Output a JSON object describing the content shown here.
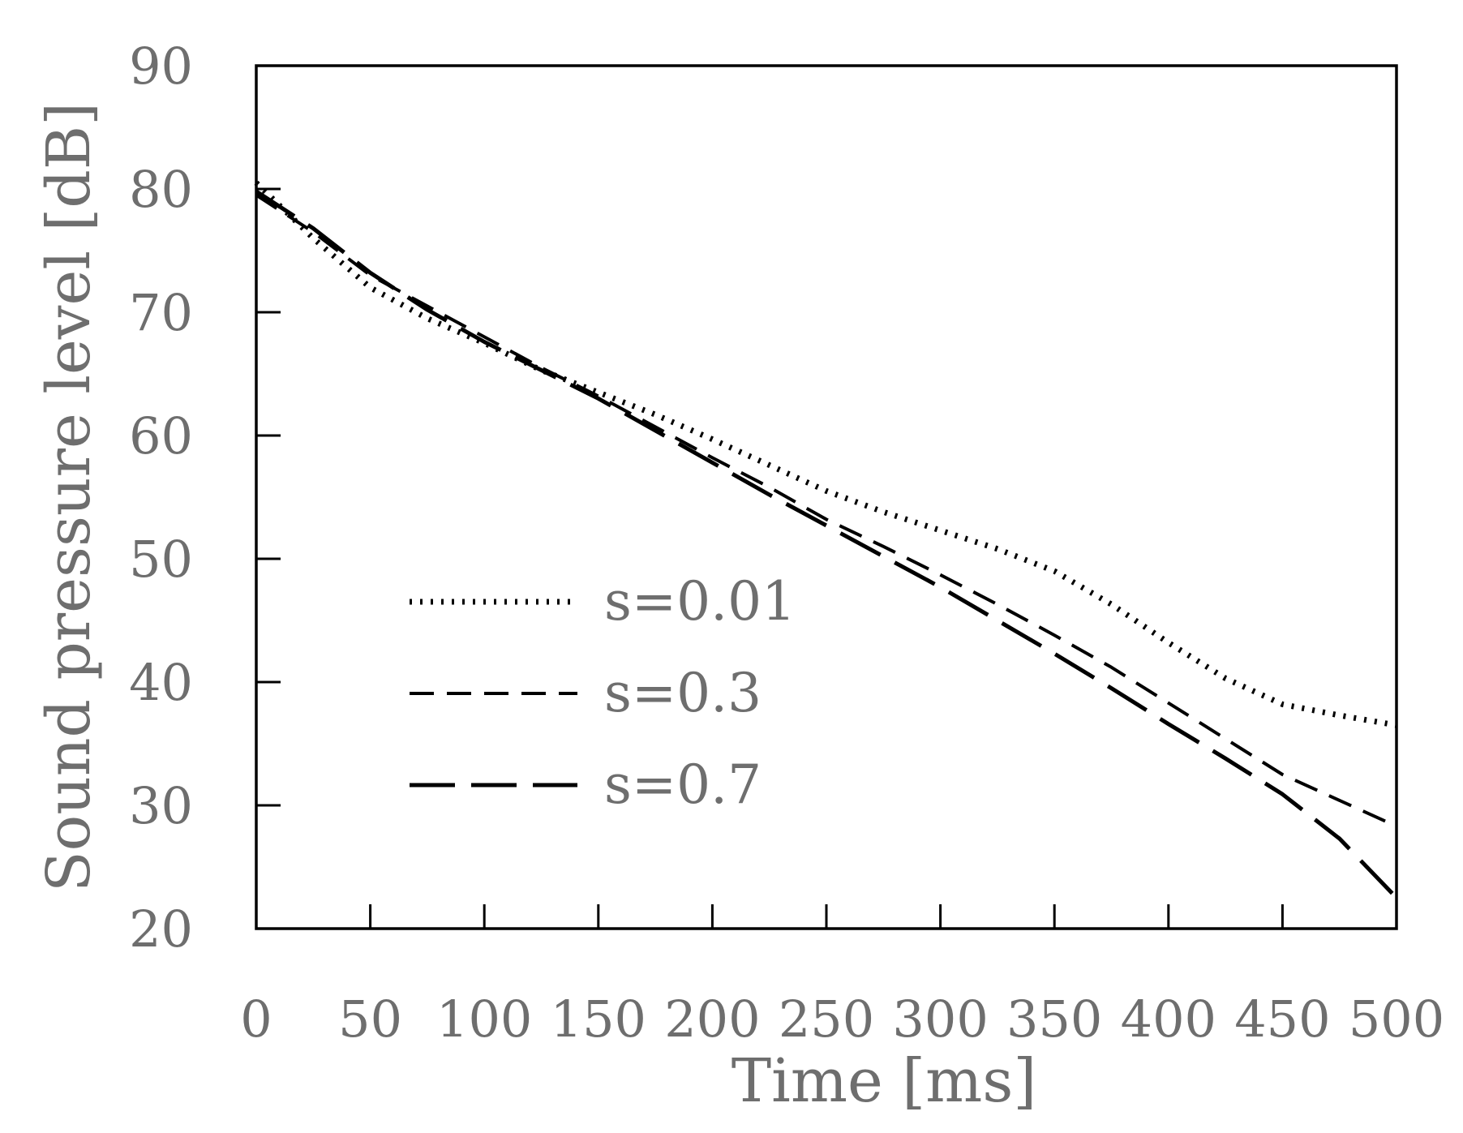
{
  "chart_data": {
    "type": "line",
    "xlabel": "Time [ms]",
    "ylabel": "Sound pressure level [dB]",
    "xlim": [
      0,
      500
    ],
    "ylim": [
      20,
      90
    ],
    "x_ticks": [
      0,
      50,
      100,
      150,
      200,
      250,
      300,
      350,
      400,
      450,
      500
    ],
    "y_ticks": [
      20,
      30,
      40,
      50,
      60,
      70,
      80,
      90
    ],
    "grid": false,
    "legend_position": "lower-left",
    "series": [
      {
        "name": "s=0.01",
        "style": "dotted",
        "x": [
          0,
          25,
          50,
          75,
          100,
          125,
          150,
          175,
          200,
          225,
          250,
          275,
          300,
          325,
          350,
          375,
          400,
          425,
          450,
          475,
          500
        ],
        "y": [
          80.5,
          76.0,
          72.0,
          69.5,
          67.5,
          65.3,
          63.5,
          61.7,
          59.7,
          57.6,
          55.5,
          53.8,
          52.3,
          50.8,
          49.0,
          46.3,
          43.2,
          40.3,
          38.2,
          37.3,
          36.5
        ]
      },
      {
        "name": "s=0.3",
        "style": "dashed",
        "x": [
          0,
          25,
          50,
          75,
          100,
          125,
          150,
          175,
          200,
          225,
          250,
          275,
          300,
          325,
          350,
          375,
          400,
          425,
          450,
          475,
          500
        ],
        "y": [
          79.5,
          76.5,
          73.0,
          70.5,
          68.0,
          65.5,
          63.2,
          60.7,
          58.2,
          55.8,
          53.2,
          51.0,
          48.7,
          46.3,
          43.8,
          41.2,
          38.3,
          35.4,
          32.5,
          30.4,
          28.3
        ]
      },
      {
        "name": "s=0.7",
        "style": "long-dashed",
        "x": [
          0,
          25,
          50,
          75,
          100,
          125,
          150,
          175,
          200,
          225,
          250,
          275,
          300,
          325,
          350,
          375,
          400,
          425,
          450,
          475,
          500
        ],
        "y": [
          79.8,
          76.8,
          73.2,
          70.2,
          67.6,
          65.3,
          63.0,
          60.4,
          57.8,
          55.2,
          52.7,
          50.2,
          47.7,
          45.0,
          42.3,
          39.5,
          36.6,
          33.8,
          30.9,
          27.3,
          22.5
        ]
      }
    ]
  }
}
